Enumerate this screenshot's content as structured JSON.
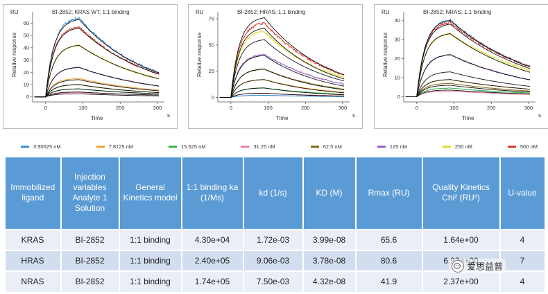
{
  "colors": {
    "3.90625 nM": "#3f8fd6",
    "7.8125 nM": "#f5a033",
    "15.625 nM": "#37b449",
    "31.25 nM": "#ef7fa6",
    "62.5 nM": "#8a6d1c",
    "125 nM": "#9b63c1",
    "250 nM": "#e3dc2c",
    "500 nM": "#dc3b2e",
    "fit": "#111111",
    "header_bg": "#5b9bd5"
  },
  "legend": [
    "3.90625 nM",
    "7.8125 nM",
    "15.625 nM",
    "31.25 nM",
    "62.5 nM",
    "125 nM",
    "250 nM",
    "500 nM"
  ],
  "chart_data": [
    {
      "type": "line",
      "title": "BI-2852; KRAS WT; 1:1 binding",
      "ylabel": "Relative response",
      "yunit": "RU",
      "xlabel": "Time",
      "xunit": "s",
      "xlim": [
        -35,
        315
      ],
      "ylim": [
        -3,
        67
      ],
      "xticks": [
        0,
        100,
        200,
        300
      ],
      "yticks": [
        0,
        10,
        20,
        30,
        40,
        50,
        60
      ],
      "grid": false,
      "association_end_s": 90,
      "fit_series": [
        {
          "name": "fit",
          "peak": 63,
          "end": 20
        },
        {
          "name": "fit",
          "peak": 56,
          "end": 19
        },
        {
          "name": "fit",
          "peak": 42,
          "end": 15
        },
        {
          "name": "fit",
          "peak": 24,
          "end": 9
        },
        {
          "name": "fit",
          "peak": 14,
          "end": 5
        },
        {
          "name": "fit",
          "peak": 10,
          "end": 3.5
        },
        {
          "name": "fit",
          "peak": 6.5,
          "end": 2.5
        },
        {
          "name": "fit",
          "peak": 4,
          "end": 1.5
        },
        {
          "name": "fit",
          "peak": 2.5,
          "end": 0.8
        }
      ],
      "series": [
        {
          "name": "3.90625 nM",
          "peak": 64,
          "end": 20
        },
        {
          "name": "500 nM",
          "peak": 57,
          "end": 19
        },
        {
          "name": "250 nM",
          "peak": 42,
          "end": 15
        },
        {
          "name": "125 nM",
          "peak": 24,
          "end": 9
        },
        {
          "name": "7.8125 nM",
          "peak": 15,
          "end": 5.5
        },
        {
          "name": "62.5 nM",
          "peak": 10,
          "end": 3.5
        },
        {
          "name": "15.625 nM",
          "peak": 6.5,
          "end": 2.5
        },
        {
          "name": "31.25 nM",
          "peak": 3.5,
          "end": 1.5
        }
      ]
    },
    {
      "type": "line",
      "title": "BI-2852; HRAS; 1:1 binding",
      "ylabel": "Relative response",
      "yunit": "RU",
      "xlabel": "Time",
      "xunit": "s",
      "xlim": [
        -35,
        315
      ],
      "ylim": [
        -3,
        79
      ],
      "xticks": [
        0,
        100,
        200,
        300
      ],
      "yticks": [
        0,
        25,
        50,
        75
      ],
      "grid": false,
      "association_end_s": 90,
      "fit_series": [
        {
          "name": "fit",
          "peak": 76,
          "end": 22
        },
        {
          "name": "fit",
          "peak": 66,
          "end": 18
        },
        {
          "name": "fit",
          "peak": 55,
          "end": 16
        },
        {
          "name": "fit",
          "peak": 40,
          "end": 11
        },
        {
          "name": "fit",
          "peak": 27,
          "end": 7.5
        },
        {
          "name": "fit",
          "peak": 17,
          "end": 4.5
        },
        {
          "name": "fit",
          "peak": 9,
          "end": 2.5
        },
        {
          "name": "fit",
          "peak": 4,
          "end": 1.2
        }
      ],
      "series": [
        {
          "name": "500 nM",
          "peak": 71,
          "end": 22
        },
        {
          "name": "250 nM",
          "peak": 63,
          "end": 19
        },
        {
          "name": "125 nM",
          "peak": 41,
          "end": 13
        },
        {
          "name": "62.5 nM",
          "peak": 27,
          "end": 8
        },
        {
          "name": "7.8125 nM",
          "peak": 17,
          "end": 5
        },
        {
          "name": "15.625 nM",
          "peak": 9,
          "end": 3
        },
        {
          "name": "31.25 nM",
          "peak": 4,
          "end": 1.5
        },
        {
          "name": "3.90625 nM",
          "peak": 2,
          "end": 0.8
        }
      ]
    },
    {
      "type": "line",
      "title": "BI-2852; NRAS; 1:1 binding",
      "ylabel": "Relative response",
      "yunit": "RU",
      "xlabel": "Time",
      "xunit": "s",
      "xlim": [
        -35,
        315
      ],
      "ylim": [
        -2,
        43
      ],
      "xticks": [
        0,
        100,
        200,
        300
      ],
      "yticks": [
        0,
        10,
        20,
        30,
        40
      ],
      "grid": false,
      "association_end_s": 90,
      "fit_series": [
        {
          "name": "fit",
          "peak": 40,
          "end": 16
        },
        {
          "name": "fit",
          "peak": 38,
          "end": 15
        },
        {
          "name": "fit",
          "peak": 33,
          "end": 13
        },
        {
          "name": "fit",
          "peak": 22,
          "end": 9
        },
        {
          "name": "fit",
          "peak": 13,
          "end": 5.5
        },
        {
          "name": "fit",
          "peak": 9,
          "end": 4
        },
        {
          "name": "fit",
          "peak": 6,
          "end": 2.5
        },
        {
          "name": "fit",
          "peak": 3.5,
          "end": 1.5
        }
      ],
      "series": [
        {
          "name": "3.90625 nM",
          "peak": 40,
          "end": 16
        },
        {
          "name": "500 nM",
          "peak": 39,
          "end": 16
        },
        {
          "name": "250 nM",
          "peak": 33,
          "end": 14
        },
        {
          "name": "125 nM",
          "peak": 22,
          "end": 9
        },
        {
          "name": "7.8125 nM",
          "peak": 9,
          "end": 4
        },
        {
          "name": "62.5 nM",
          "peak": 7,
          "end": 3
        },
        {
          "name": "15.625 nM",
          "peak": 4.5,
          "end": 2
        },
        {
          "name": "31.25 nM",
          "peak": 3,
          "end": 1.2
        }
      ]
    }
  ],
  "table": {
    "headers": [
      "Immobilized ligand",
      "Injection variables Analyte 1 Solution",
      "General Kinetics model",
      "1:1 binding ka (1/Ms)",
      "kd (1/s)",
      "KD (M)",
      "Rmax (RU)",
      "Quality Kinetics Chi² (RU²)",
      "U-value"
    ],
    "rows": [
      [
        "KRAS",
        "BI-2852",
        "1:1 binding",
        "4.30e+04",
        "1.72e-03",
        "3.99e-08",
        "65.6",
        "1.64e+00",
        "4"
      ],
      [
        "HRAS",
        "BI-2852",
        "1:1 binding",
        "2.40e+05",
        "9.06e-03",
        "3.78e-08",
        "80.6",
        "6.93e+00",
        "7"
      ],
      [
        "NRAS",
        "BI-2852",
        "1:1 binding",
        "1.74e+05",
        "7.50e-03",
        "4.32e-08",
        "41.9",
        "2.37e+00",
        "4"
      ]
    ]
  },
  "watermark": {
    "text": "爱思益普",
    "icon": "wechat-icon"
  }
}
